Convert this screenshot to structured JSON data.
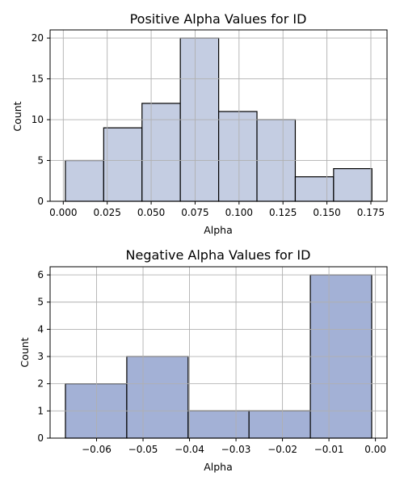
{
  "chart_data": [
    {
      "type": "bar",
      "title": "Positive Alpha Values for ID",
      "xlabel": "Alpha",
      "ylabel": "Count",
      "bin_edges": [
        0.0012,
        0.023,
        0.0448,
        0.0666,
        0.0884,
        0.1102,
        0.132,
        0.1538,
        0.1756
      ],
      "values": [
        5,
        9,
        12,
        20,
        11,
        10,
        3,
        4
      ],
      "xlim": [
        -0.0075,
        0.1842
      ],
      "ylim": [
        0,
        21
      ],
      "xticks": [
        "0.000",
        "0.025",
        "0.050",
        "0.075",
        "0.100",
        "0.125",
        "0.150",
        "0.175"
      ],
      "xtick_values": [
        0.0,
        0.025,
        0.05,
        0.075,
        0.1,
        0.125,
        0.15,
        0.175
      ],
      "yticks": [
        "0",
        "5",
        "10",
        "15",
        "20"
      ],
      "ytick_values": [
        0,
        5,
        10,
        15,
        20
      ],
      "grid": true,
      "bar_color": "#c4cde2",
      "edge_color": "#000000"
    },
    {
      "type": "bar",
      "title": "Negative Alpha Values for ID",
      "xlabel": "Alpha",
      "ylabel": "Count",
      "bin_edges": [
        -0.0667,
        -0.0535,
        -0.0403,
        -0.0272,
        -0.014,
        -0.0008
      ],
      "values": [
        2,
        3,
        1,
        1,
        6
      ],
      "xlim": [
        -0.07,
        0.0025
      ],
      "ylim": [
        0,
        6.3
      ],
      "xticks": [
        "−0.06",
        "−0.05",
        "−0.04",
        "−0.03",
        "−0.02",
        "−0.01",
        "0.00"
      ],
      "xtick_values": [
        -0.06,
        -0.05,
        -0.04,
        -0.03,
        -0.02,
        -0.01,
        0.0
      ],
      "yticks": [
        "0",
        "1",
        "2",
        "3",
        "4",
        "5",
        "6"
      ],
      "ytick_values": [
        0,
        1,
        2,
        3,
        4,
        5,
        6
      ],
      "grid": true,
      "bar_color": "#a3b1d6",
      "edge_color": "#000000"
    }
  ]
}
